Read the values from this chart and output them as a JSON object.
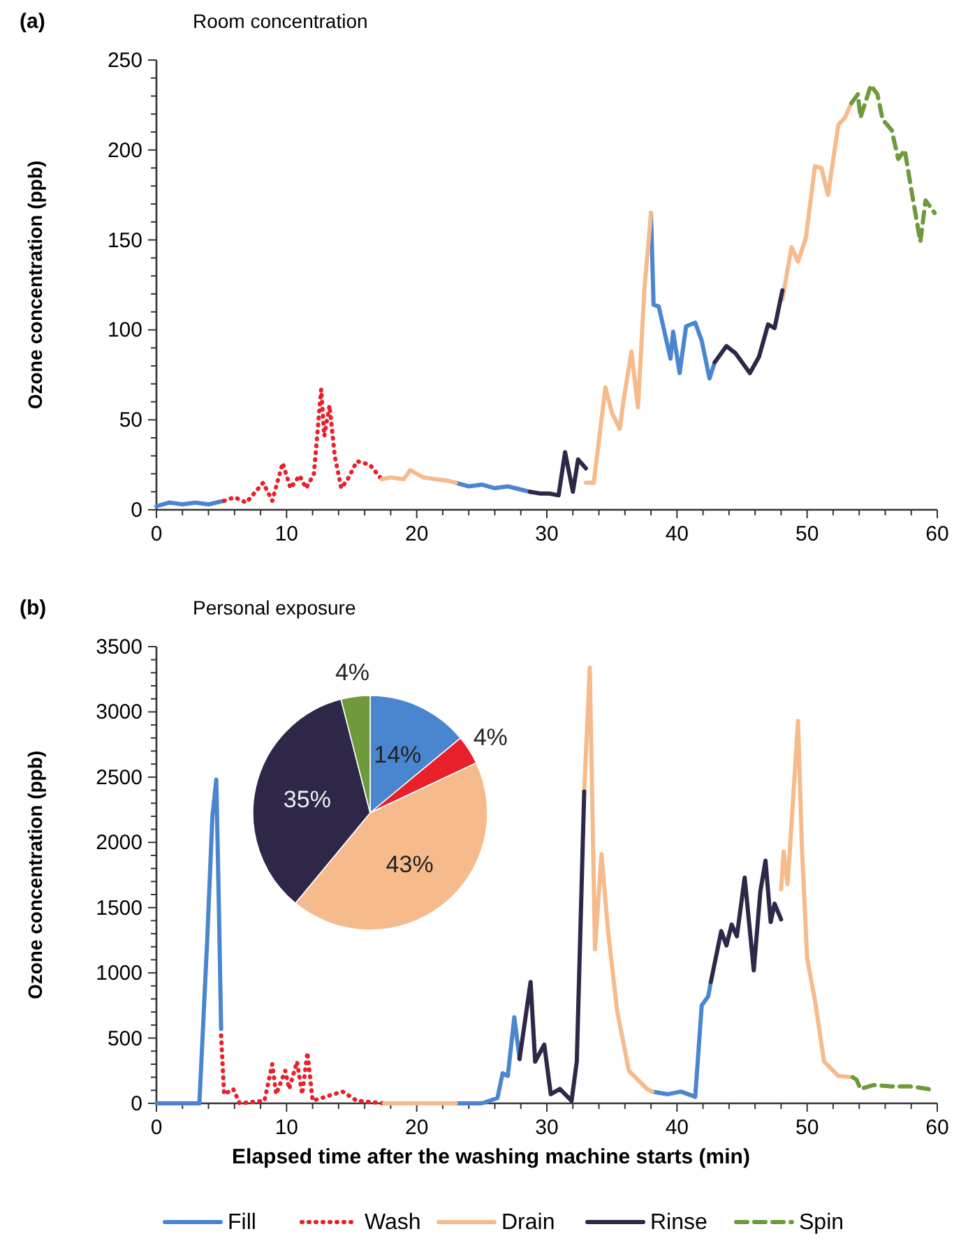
{
  "chart_data": [
    {
      "type": "line",
      "title": "(a)",
      "subtitle": "Room concentration",
      "ylabel": "Ozone concentration (ppb)",
      "xlim": [
        0,
        60
      ],
      "ylim": [
        0,
        250
      ],
      "xticks": [
        0,
        {
          "value": 2,
          "label": null
        },
        {
          "value": 4,
          "label": null
        },
        {
          "value": 6,
          "label": null
        },
        {
          "value": 8,
          "label": null
        },
        10,
        {
          "value": 12,
          "label": null
        },
        {
          "value": 14,
          "label": null
        },
        {
          "value": 16,
          "label": null
        },
        {
          "value": 18,
          "label": null
        },
        20,
        {
          "value": 22,
          "label": null
        },
        {
          "value": 24,
          "label": null
        },
        {
          "value": 26,
          "label": null
        },
        {
          "value": 28,
          "label": null
        },
        30,
        {
          "value": 32,
          "label": null
        },
        {
          "value": 34,
          "label": null
        },
        {
          "value": 36,
          "label": null
        },
        {
          "value": 38,
          "label": null
        },
        40,
        {
          "value": 42,
          "label": null
        },
        {
          "value": 44,
          "label": null
        },
        {
          "value": 46,
          "label": null
        },
        {
          "value": 48,
          "label": null
        },
        50,
        {
          "value": 52,
          "label": null
        },
        {
          "value": 54,
          "label": null
        },
        {
          "value": 56,
          "label": null
        },
        {
          "value": 58,
          "label": null
        },
        60
      ],
      "yticks": [
        0,
        {
          "value": 10,
          "label": null
        },
        {
          "value": 20,
          "label": null
        },
        {
          "value": 30,
          "label": null
        },
        {
          "value": 40,
          "label": null
        },
        50,
        {
          "value": 60,
          "label": null
        },
        {
          "value": 70,
          "label": null
        },
        {
          "value": 80,
          "label": null
        },
        {
          "value": 90,
          "label": null
        },
        100,
        {
          "value": 110,
          "label": null
        },
        {
          "value": 120,
          "label": null
        },
        {
          "value": 130,
          "label": null
        },
        {
          "value": 140,
          "label": null
        },
        150,
        {
          "value": 160,
          "label": null
        },
        {
          "value": 170,
          "label": null
        },
        {
          "value": 180,
          "label": null
        },
        {
          "value": 190,
          "label": null
        },
        200,
        {
          "value": 210,
          "label": null
        },
        {
          "value": 220,
          "label": null
        },
        {
          "value": 230,
          "label": null
        },
        {
          "value": 240,
          "label": null
        },
        250
      ],
      "grid": false,
      "legend": false,
      "marker": "none",
      "series": [
        {
          "color": "#4a86d0",
          "line_style": "solid",
          "x": [
            0,
            1,
            2,
            3,
            4,
            5.2,
            14,
            23,
            24,
            25,
            26,
            27,
            28.7,
            33,
            38,
            38.2,
            38.6,
            39.5,
            39.7,
            40.2,
            40.7,
            41.4,
            41.9,
            42.5,
            42.9
          ],
          "values": [
            2,
            4,
            3,
            4,
            3,
            5,
            null,
            15,
            13,
            14,
            12,
            13,
            10,
            null,
            165,
            114,
            113,
            84,
            99,
            76,
            102,
            104,
            94,
            73,
            82
          ]
        },
        {
          "color": "#e8202a",
          "line_style": "dotted",
          "x": [
            5.2,
            6,
            6.9,
            8.2,
            8.9,
            9.7,
            10.3,
            11,
            11.5,
            12.1,
            12.66,
            12.9,
            13.3,
            13.7,
            14.2,
            14.7,
            15.4,
            16.4,
            17.3
          ],
          "values": [
            5,
            7,
            4,
            15,
            5,
            26,
            12,
            19,
            12,
            20,
            67,
            41,
            58,
            30,
            12,
            17,
            27,
            25,
            17
          ]
        },
        {
          "color": "#f6bb8c",
          "line_style": "solid",
          "x": [
            17.3,
            18,
            19,
            19.5,
            20.5,
            21.5,
            22.5,
            23,
            28,
            33,
            33.6,
            34.5,
            35,
            35.6,
            35.9,
            36.5,
            37,
            37.5,
            38,
            43,
            48.1,
            48.8,
            49.3,
            49.9,
            50.6,
            51.1,
            51.6,
            52.4,
            52.9,
            53.4
          ],
          "values": [
            17,
            18,
            17,
            22,
            18,
            17,
            16,
            15,
            null,
            15,
            15,
            68,
            54,
            45,
            61,
            88,
            57,
            123,
            165,
            null,
            117,
            146,
            138,
            151,
            191,
            190,
            175,
            214,
            218,
            226
          ]
        },
        {
          "color": "#2e2748",
          "line_style": "solid",
          "x": [
            28.7,
            29.5,
            30.2,
            30.9,
            31.4,
            32,
            32.4,
            33,
            38,
            42.9,
            43.8,
            44.5,
            45.6,
            46.3,
            47,
            47.5,
            48.1
          ],
          "values": [
            10,
            9,
            9,
            8,
            32,
            10,
            28,
            23,
            null,
            82,
            91,
            87,
            76,
            85,
            103,
            101,
            122
          ]
        },
        {
          "color": "#6e9a3c",
          "line_style": "dashed",
          "x": [
            53.4,
            53.9,
            54.1,
            54.9,
            55.4,
            55.8,
            56.5,
            57,
            57.5,
            58.1,
            58.7,
            59.1,
            59.8
          ],
          "values": [
            226,
            231,
            218,
            236,
            231,
            217,
            211,
            195,
            200,
            174,
            149,
            172,
            165
          ]
        }
      ]
    },
    {
      "type": "line",
      "title": "(b)",
      "subtitle": "Personal exposure",
      "xlabel": "Elapsed time after the washing machine starts (min)",
      "ylabel": "Ozone concentration (ppb)",
      "xlim": [
        0,
        60
      ],
      "ylim": [
        0,
        3500
      ],
      "xticks": [
        0,
        {
          "value": 2,
          "label": null
        },
        {
          "value": 4,
          "label": null
        },
        {
          "value": 6,
          "label": null
        },
        {
          "value": 8,
          "label": null
        },
        10,
        {
          "value": 12,
          "label": null
        },
        {
          "value": 14,
          "label": null
        },
        {
          "value": 16,
          "label": null
        },
        {
          "value": 18,
          "label": null
        },
        20,
        {
          "value": 22,
          "label": null
        },
        {
          "value": 24,
          "label": null
        },
        {
          "value": 26,
          "label": null
        },
        {
          "value": 28,
          "label": null
        },
        30,
        {
          "value": 32,
          "label": null
        },
        {
          "value": 34,
          "label": null
        },
        {
          "value": 36,
          "label": null
        },
        {
          "value": 38,
          "label": null
        },
        40,
        {
          "value": 42,
          "label": null
        },
        {
          "value": 44,
          "label": null
        },
        {
          "value": 46,
          "label": null
        },
        {
          "value": 48,
          "label": null
        },
        50,
        {
          "value": 52,
          "label": null
        },
        {
          "value": 54,
          "label": null
        },
        {
          "value": 56,
          "label": null
        },
        {
          "value": 58,
          "label": null
        },
        60
      ],
      "yticks": [
        0,
        {
          "value": 100,
          "label": null
        },
        {
          "value": 200,
          "label": null
        },
        {
          "value": 300,
          "label": null
        },
        {
          "value": 400,
          "label": null
        },
        500,
        {
          "value": 600,
          "label": null
        },
        {
          "value": 700,
          "label": null
        },
        {
          "value": 800,
          "label": null
        },
        {
          "value": 900,
          "label": null
        },
        1000,
        {
          "value": 1100,
          "label": null
        },
        {
          "value": 1200,
          "label": null
        },
        {
          "value": 1300,
          "label": null
        },
        {
          "value": 1400,
          "label": null
        },
        1500,
        {
          "value": 1600,
          "label": null
        },
        {
          "value": 1700,
          "label": null
        },
        {
          "value": 1800,
          "label": null
        },
        {
          "value": 1900,
          "label": null
        },
        2000,
        {
          "value": 2100,
          "label": null
        },
        {
          "value": 2200,
          "label": null
        },
        {
          "value": 2300,
          "label": null
        },
        {
          "value": 2400,
          "label": null
        },
        2500,
        {
          "value": 2600,
          "label": null
        },
        {
          "value": 2700,
          "label": null
        },
        {
          "value": 2800,
          "label": null
        },
        {
          "value": 2900,
          "label": null
        },
        3000,
        {
          "value": 3100,
          "label": null
        },
        {
          "value": 3200,
          "label": null
        },
        {
          "value": 3300,
          "label": null
        },
        {
          "value": 3400,
          "label": null
        },
        3500
      ],
      "grid": false,
      "legend": "bottom",
      "marker": "none",
      "series": [
        {
          "name": "Fill",
          "color": "#4a86d0",
          "line_style": "solid",
          "x": [
            0,
            1,
            2,
            3,
            3.3,
            3.9,
            4.3,
            4.6,
            4.8,
            4.97,
            15,
            23,
            24,
            25,
            26.2,
            26.6,
            27,
            27.5,
            27.9,
            33,
            38.1,
            39.3,
            40.3,
            41.4,
            41.9,
            42.4,
            42.6
          ],
          "values": [
            0,
            0,
            0,
            0,
            0,
            1250,
            2200,
            2480,
            1500,
            570,
            null,
            0,
            0,
            0,
            40,
            230,
            210,
            660,
            340,
            null,
            90,
            70,
            90,
            50,
            750,
            820,
            930
          ]
        },
        {
          "name": "Wash",
          "color": "#e8202a",
          "line_style": "dotted",
          "x": [
            4.97,
            5.2,
            5.9,
            6.4,
            8.3,
            8.9,
            9.2,
            9.9,
            10.2,
            10.8,
            11.2,
            11.6,
            12,
            14.3,
            15.4,
            17.5
          ],
          "values": [
            520,
            70,
            110,
            0,
            20,
            300,
            70,
            250,
            110,
            320,
            70,
            390,
            20,
            90,
            20,
            0
          ]
        },
        {
          "name": "Drain",
          "color": "#f6bb8c",
          "line_style": "solid",
          "x": [
            17.5,
            20,
            23,
            28,
            32.87,
            33.3,
            33.7,
            34.2,
            34.7,
            35.4,
            36.3,
            37.7,
            38.1,
            43,
            48,
            48.2,
            48.5,
            48.8,
            49.3,
            49.6,
            50,
            50.6,
            51.3,
            52.4,
            53.5
          ],
          "values": [
            0,
            0,
            0,
            null,
            2390,
            3340,
            1180,
            1910,
            1320,
            710,
            250,
            110,
            90,
            null,
            1640,
            1930,
            1680,
            2140,
            2930,
            1960,
            1110,
            790,
            320,
            210,
            200
          ]
        },
        {
          "name": "Rinse",
          "color": "#2e2748",
          "line_style": "solid",
          "x": [
            27.9,
            28.75,
            29.1,
            29.8,
            30.3,
            31,
            31.9,
            32.3,
            32.87,
            38,
            42.6,
            43.4,
            43.8,
            44.2,
            44.6,
            45.2,
            45.9,
            46.4,
            46.8,
            47.2,
            47.5,
            48
          ],
          "values": [
            340,
            930,
            320,
            450,
            70,
            110,
            20,
            320,
            2390,
            null,
            930,
            1320,
            1210,
            1370,
            1280,
            1730,
            1020,
            1620,
            1860,
            1390,
            1530,
            1410
          ]
        },
        {
          "name": "Spin",
          "color": "#6e9a3c",
          "line_style": "dashed",
          "x": [
            53.5,
            53.8,
            54.1,
            55.1,
            56.5,
            57.9,
            59.3,
            59.8
          ],
          "values": [
            200,
            180,
            110,
            140,
            130,
            130,
            110,
            90
          ]
        }
      ]
    },
    {
      "type": "pie",
      "values": [
        14,
        4,
        43,
        35,
        4
      ],
      "colors": [
        "#4a86d0",
        "#e8202a",
        "#f6bb8c",
        "#2e2748",
        "#6e9a3c"
      ],
      "value_labels": [
        "14%",
        "4%",
        "43%",
        "35%",
        "4%"
      ],
      "legend": false
    }
  ]
}
